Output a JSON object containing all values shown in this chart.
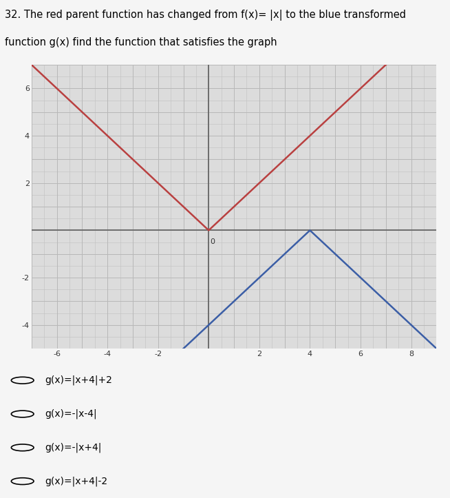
{
  "title_line1": "32. The red parent function has changed from f(x)= |x| to the blue transformed",
  "title_line2": "function g(x) find the function that satisfies the graph",
  "title_fontsize": 10.5,
  "xmin": -7,
  "xmax": 9,
  "ymin": -5,
  "ymax": 7,
  "xticks": [
    -6,
    -4,
    -2,
    2,
    4,
    6,
    8
  ],
  "yticks": [
    -4,
    -2,
    2,
    4,
    6
  ],
  "x_tick_labels": [
    "-6",
    "-4",
    "-2",
    "2",
    "4",
    "6",
    "8"
  ],
  "y_tick_labels": [
    "-4",
    "-2",
    "2",
    "4",
    "6"
  ],
  "red_color": "#b94040",
  "blue_color": "#3b5ea6",
  "bg_color": "#dcdcdc",
  "grid_major_color": "#b0b0b0",
  "grid_minor_color": "#c8c8c8",
  "axis_color": "#666666",
  "choices": [
    "g(x)=|x+4|+2",
    "g(x)=-|x-4|",
    "g(x)=-|x+4|",
    "g(x)=|x+4|-2"
  ],
  "tick_fontsize": 8,
  "choice_fontsize": 10,
  "fig_bg": "#f5f5f5"
}
